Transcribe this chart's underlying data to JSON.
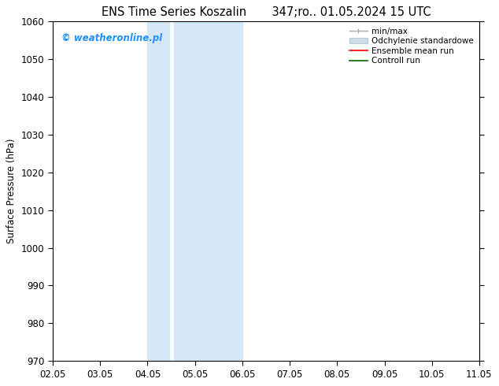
{
  "title": "ENS Time Series Koszalin       347;ro.. 01.05.2024 15 UTC",
  "ylabel": "Surface Pressure (hPa)",
  "ylim": [
    970,
    1060
  ],
  "yticks": [
    970,
    980,
    990,
    1000,
    1010,
    1020,
    1030,
    1040,
    1050,
    1060
  ],
  "xtick_labels": [
    "02.05",
    "03.05",
    "04.05",
    "05.05",
    "06.05",
    "07.05",
    "08.05",
    "09.05",
    "10.05",
    "11.05"
  ],
  "watermark": "© weatheronline.pl",
  "watermark_color": "#1E90FF",
  "shade_color": "#D6E8F8",
  "background_color": "#FFFFFF",
  "legend_items": [
    {
      "label": "min/max"
    },
    {
      "label": "Odchylenie standardowe"
    },
    {
      "label": "Ensemble mean run"
    },
    {
      "label": "Controll run"
    }
  ],
  "title_fontsize": 10.5,
  "axis_fontsize": 8.5,
  "watermark_fontsize": 8.5
}
